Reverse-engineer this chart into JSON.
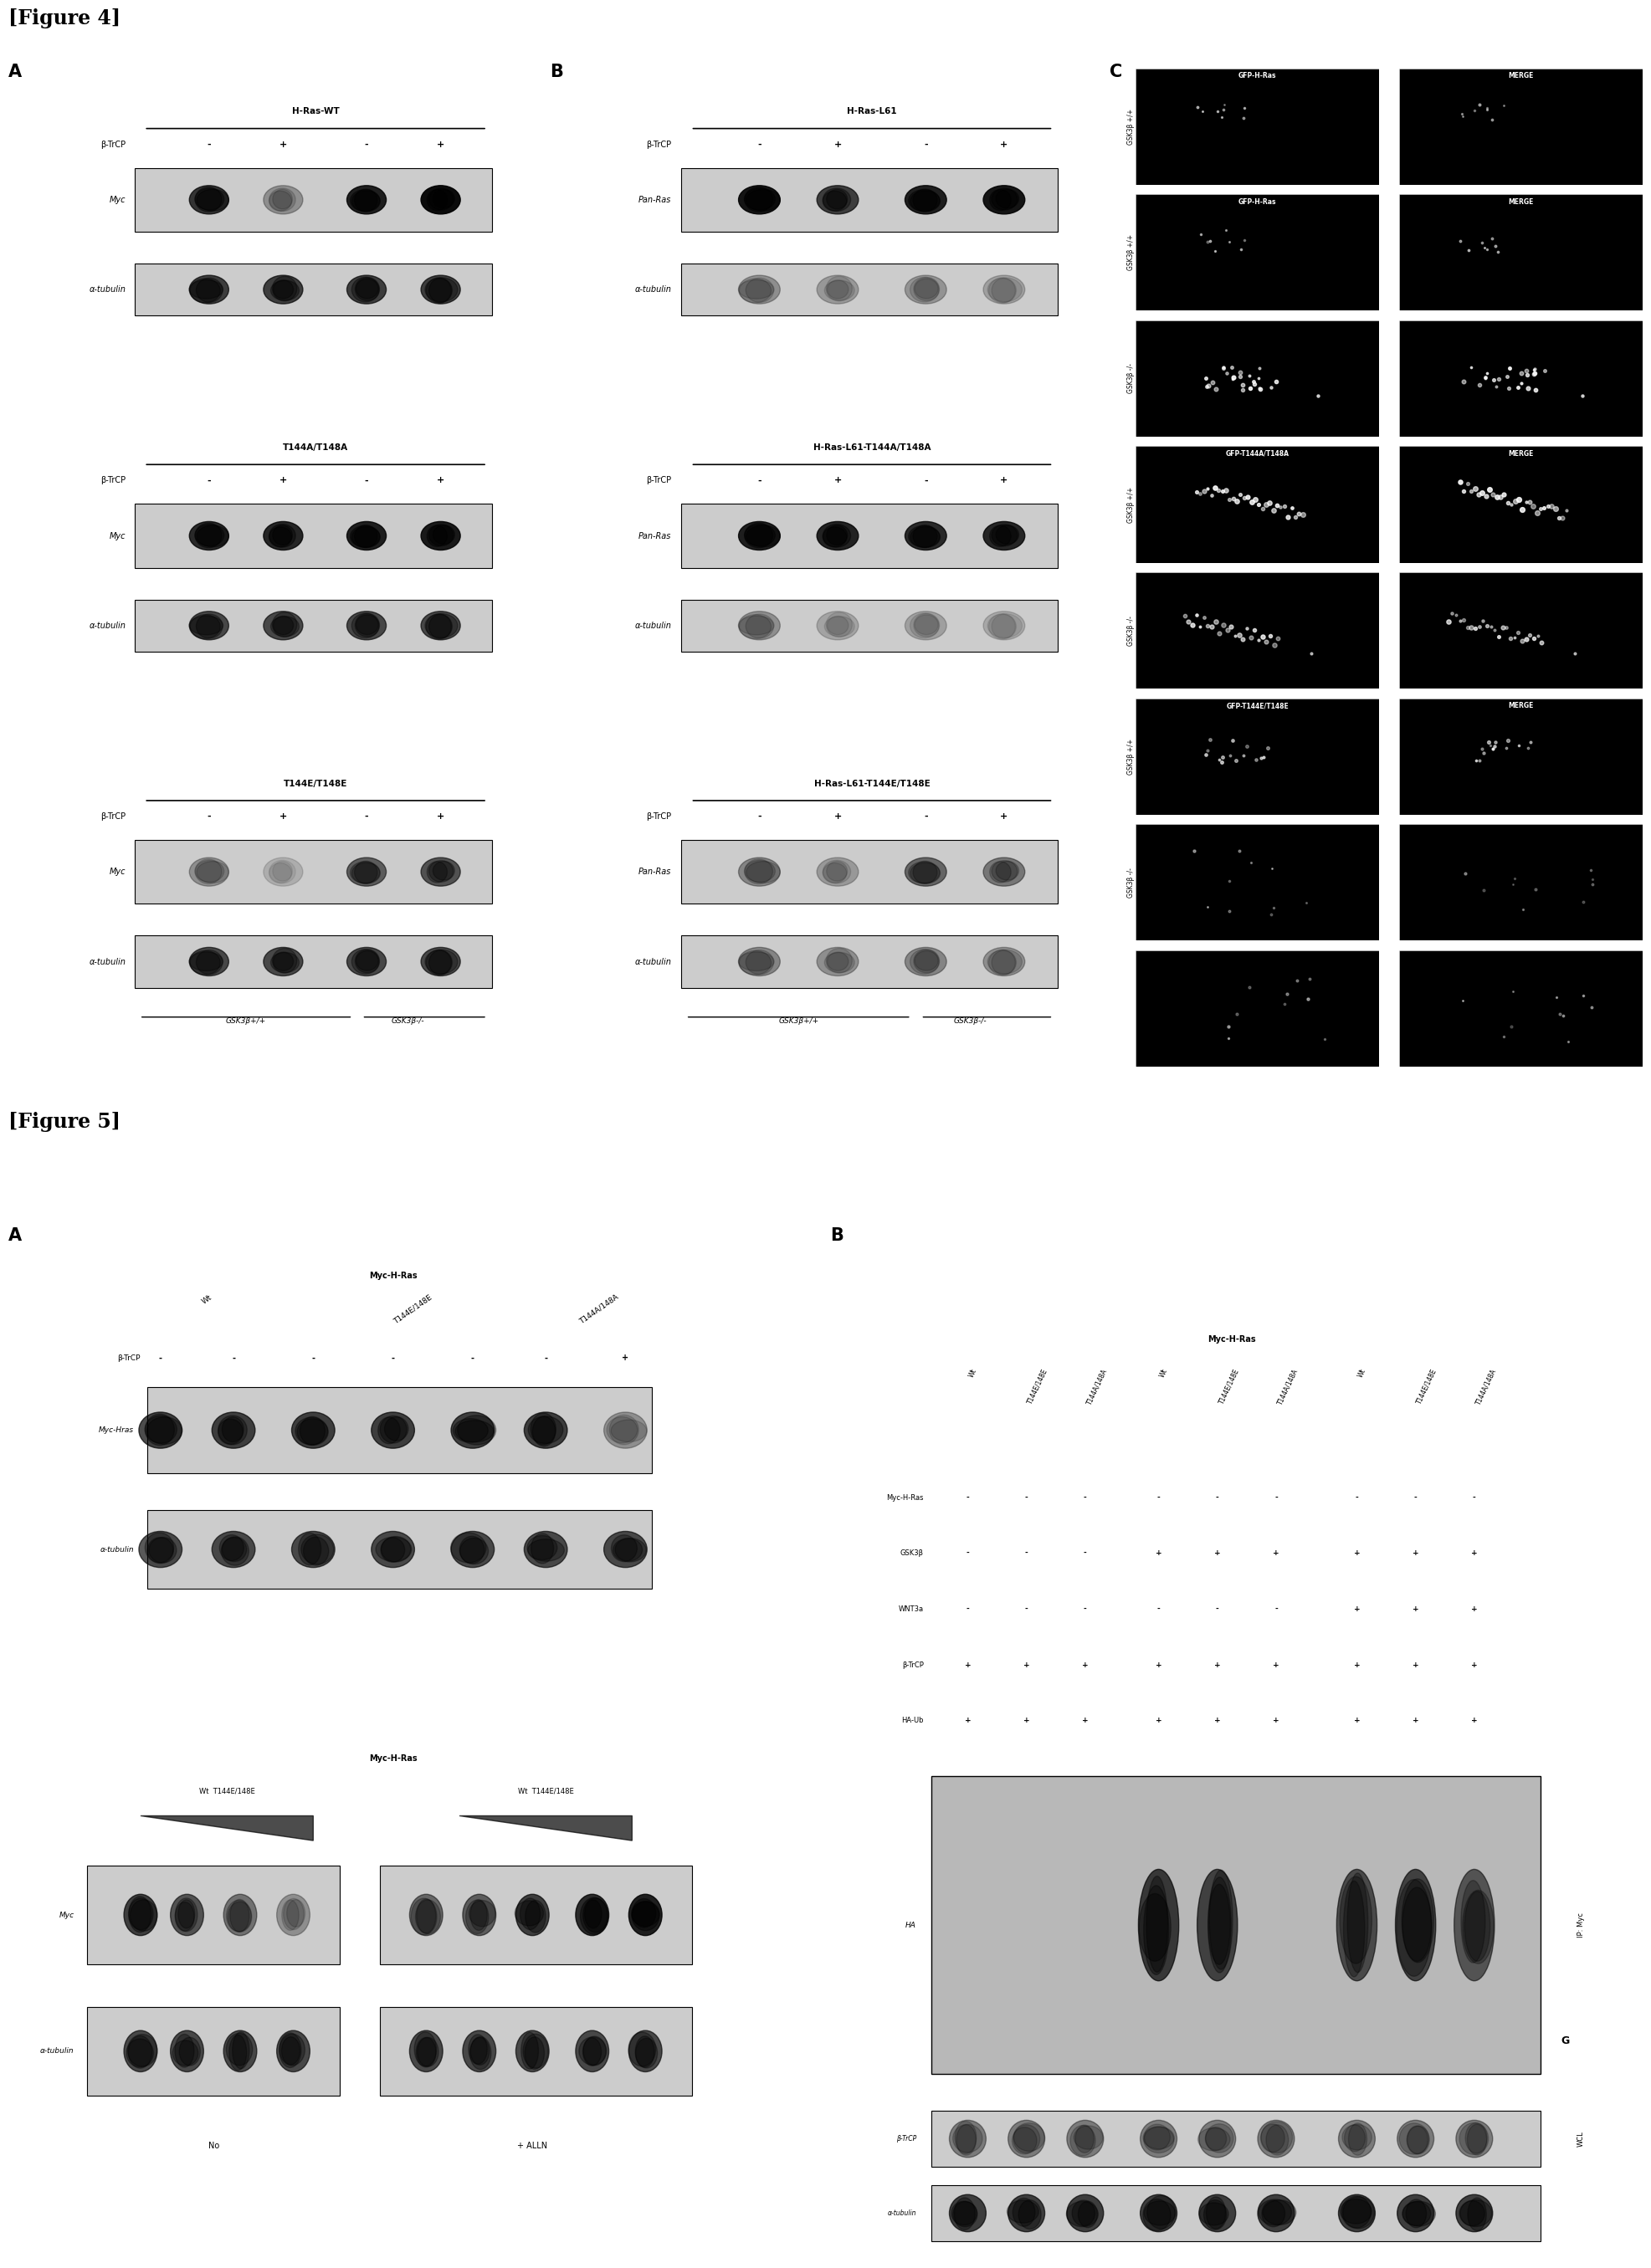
{
  "fig_title4": "[Figure 4]",
  "fig_title5": "[Figure 5]",
  "bg_color": "#ffffff",
  "panel_bg": "#d8d8d8",
  "figure4": {
    "panelA_sections": [
      {
        "title": "H-Ras-WT",
        "xlabel": "β-TrCP",
        "xvals": [
          "-",
          "+",
          "-",
          "+"
        ],
        "rows": [
          {
            "label": "Myc",
            "bands": [
              0.75,
              0.3,
              0.85,
              0.95
            ]
          },
          {
            "label": "α-tubulin",
            "bands": [
              0.7,
              0.7,
              0.7,
              0.7
            ]
          }
        ]
      },
      {
        "title": "T144A/T148A",
        "xlabel": "β-TrCP",
        "xvals": [
          "-",
          "+",
          "-",
          "+"
        ],
        "rows": [
          {
            "label": "Myc",
            "bands": [
              0.8,
              0.82,
              0.85,
              0.88
            ]
          },
          {
            "label": "α-tubulin",
            "bands": [
              0.65,
              0.65,
              0.65,
              0.65
            ]
          }
        ]
      },
      {
        "title": "T144E/T148E",
        "xlabel": "β-TrCP",
        "xvals": [
          "-",
          "+",
          "-",
          "+"
        ],
        "rows": [
          {
            "label": "Myc",
            "bands": [
              0.3,
              0.15,
              0.55,
              0.6
            ]
          },
          {
            "label": "α-tubulin",
            "bands": [
              0.65,
              0.65,
              0.65,
              0.65
            ]
          }
        ],
        "gsk_labels": [
          "GSK3β+/+",
          "GSK3β-/-"
        ]
      }
    ],
    "panelB_sections": [
      {
        "title": "H-Ras-L61",
        "xlabel": "β-TrCP",
        "xvals": [
          "-",
          "+",
          "-",
          "+"
        ],
        "rows": [
          {
            "label": "Pan-Ras",
            "bands": [
              0.9,
              0.7,
              0.85,
              0.9
            ]
          },
          {
            "label": "α-tubulin",
            "bands": [
              0.3,
              0.25,
              0.28,
              0.22
            ]
          }
        ]
      },
      {
        "title": "H-Ras-L61-T144A/T148A",
        "xlabel": "β-TrCP",
        "xvals": [
          "-",
          "+",
          "-",
          "+"
        ],
        "rows": [
          {
            "label": "Pan-Ras",
            "bands": [
              0.85,
              0.83,
              0.8,
              0.82
            ]
          },
          {
            "label": "α-tubulin",
            "bands": [
              0.3,
              0.2,
              0.22,
              0.18
            ]
          }
        ]
      },
      {
        "title": "H-Ras-L61-T144E/T148E",
        "xlabel": "β-TrCP",
        "xvals": [
          "-",
          "+",
          "-",
          "+"
        ],
        "rows": [
          {
            "label": "Pan-Ras",
            "bands": [
              0.35,
              0.25,
              0.5,
              0.42
            ]
          },
          {
            "label": "α-tubulin",
            "bands": [
              0.35,
              0.3,
              0.35,
              0.3
            ]
          }
        ],
        "gsk_labels": [
          "GSK3β+/+",
          "GSK3β-/-"
        ]
      }
    ],
    "panelC_groups": [
      {
        "header1": "GFP-H-Ras",
        "header2": "MERGE",
        "rows": [
          {
            "ylabel": "GSK3β +/+",
            "cell_type1": "dots_small",
            "cell_type2": "dots_small"
          },
          {
            "ylabel": "GSK3β -/-",
            "cell_type1": "cluster_bright",
            "cell_type2": "cluster_bright"
          }
        ]
      },
      {
        "header1": "GFP-T144A/T148A",
        "header2": "MERGE",
        "rows": [
          {
            "ylabel": "GSK3β +/+",
            "cell_type1": "elongated",
            "cell_type2": "elongated"
          },
          {
            "ylabel": "GSK3β -/-",
            "cell_type1": "elongated2",
            "cell_type2": "elongated2"
          }
        ]
      },
      {
        "header1": "GFP-T144E/T148E",
        "header2": "MERGE",
        "rows": [
          {
            "ylabel": "GSK3β +/+",
            "cell_type1": "dots_medium",
            "cell_type2": "dots_medium"
          },
          {
            "ylabel": "GSK3β -/-",
            "cell_type1": "dots_faint",
            "cell_type2": "dots_faint"
          }
        ]
      }
    ]
  },
  "figure5": {
    "panelA_top": {
      "title": "Myc-H-Ras",
      "col_groups": [
        "Wt",
        "T144E/148E",
        "T144A/148A"
      ],
      "xlabel": "β-TrCP",
      "xvals": [
        "-",
        "-",
        "-",
        "-",
        "-",
        "-",
        "+"
      ],
      "rows": [
        {
          "label": "Myc-Hras",
          "bands": [
            0.7,
            0.7,
            0.7,
            0.7,
            0.7,
            0.7,
            0.3
          ]
        },
        {
          "label": "α-tubulin",
          "bands": [
            0.65,
            0.65,
            0.65,
            0.65,
            0.65,
            0.65,
            0.65
          ]
        }
      ]
    },
    "panelA_bot": {
      "title": "Myc-H-Ras",
      "group1_label": "Wt  T144E/148E",
      "group2_label": "Wt  T144E/148E",
      "bottom_label1": "No",
      "bottom_label2": "+ ALLN",
      "rows": [
        {
          "label": "Myc",
          "grp1": [
            0.7,
            0.6,
            0.45,
            0.3
          ],
          "grp2": [
            0.5,
            0.55,
            0.7,
            0.8,
            0.85
          ]
        },
        {
          "label": "α-tubulin",
          "grp1": [
            0.65,
            0.65,
            0.65,
            0.65
          ],
          "grp2": [
            0.65,
            0.65,
            0.65,
            0.65,
            0.65
          ]
        }
      ]
    },
    "panelB": {
      "title": "Myc-H-Ras",
      "col_groups": [
        "Wt",
        "T144E/148E",
        "T144A/148A",
        "Wt",
        "T144E/148E",
        "T144A/148A",
        "Wt",
        "T144E/148E",
        "T144A/148A"
      ],
      "row_labels": [
        "Myc-H-Ras",
        "GSK3β",
        "WNT3a",
        "β-TrCP",
        "HA-Ub"
      ],
      "row_signs": [
        [
          "-",
          "-",
          "-",
          "-",
          "-",
          "-",
          "-",
          "-",
          "-"
        ],
        [
          "-",
          "-",
          "-",
          "+",
          "+",
          "+",
          "+",
          "+",
          "+"
        ],
        [
          "-",
          "-",
          "-",
          "-",
          "-",
          "-",
          "+",
          "+",
          "+"
        ],
        [
          "+",
          "+",
          "+",
          "+",
          "+",
          "+",
          "+",
          "+",
          "+"
        ],
        [
          "+",
          "+",
          "+",
          "+",
          "+",
          "+",
          "+",
          "+",
          "+"
        ]
      ],
      "ha_bands": [
        0.0,
        0.0,
        0.0,
        0.7,
        0.65,
        0.0,
        0.6,
        0.65,
        0.55
      ],
      "btrcp_bands": [
        0.4,
        0.4,
        0.4,
        0.4,
        0.4,
        0.4,
        0.4,
        0.4,
        0.4
      ],
      "tub_bands": [
        0.7,
        0.7,
        0.7,
        0.7,
        0.7,
        0.7,
        0.7,
        0.7,
        0.7
      ]
    }
  }
}
